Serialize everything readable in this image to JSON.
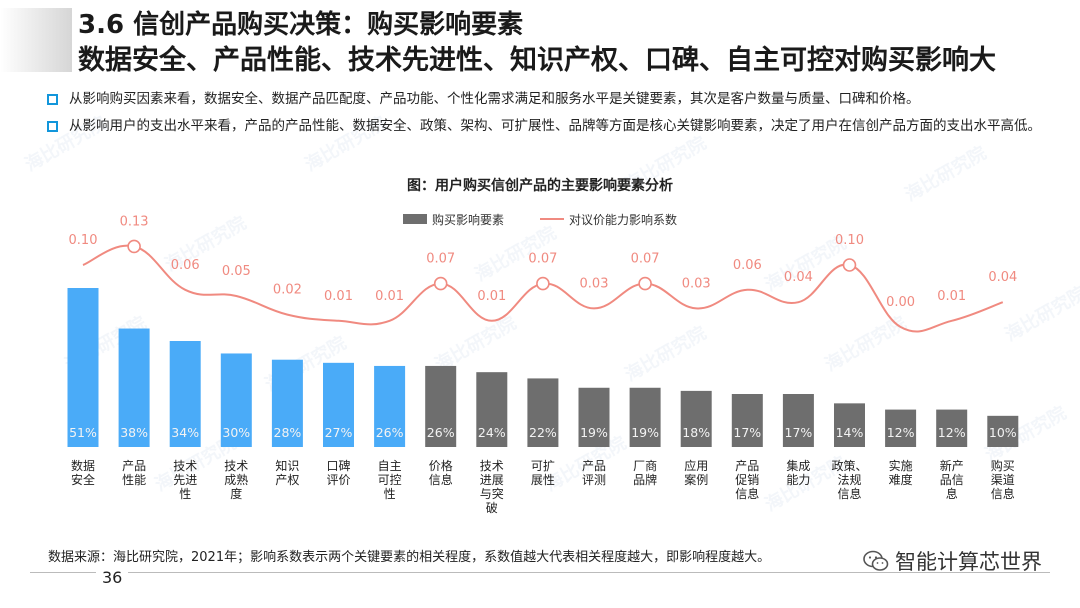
{
  "header": {
    "title_line1": "3.6 信创产品购买决策：购买影响要素",
    "title_line2": "数据安全、产品性能、技术先进性、知识产权、口碑、自主可控对购买影响大"
  },
  "bullets": [
    "从影响购买因素来看，数据安全、数据产品匹配度、产品功能、个性化需求满足和服务水平是关键要素，其次是客户数量与质量、口碑和价格。",
    "从影响用户的支出水平来看，产品的产品性能、数据安全、政策、架构、可扩展性、品牌等方面是核心关键影响要素，决定了用户在信创产品方面的支出水平高低。"
  ],
  "chart_data": {
    "type": "bar",
    "title": "图：用户购买信创产品的主要影响要素分析",
    "categories": [
      "数据\n安全",
      "产品\n性能",
      "技术\n先进\n性",
      "技术\n成熟\n度",
      "知识\n产权",
      "口碑\n评价",
      "自主\n可控\n性",
      "价格\n信息",
      "技术\n进展\n与突\n破",
      "可扩\n展性",
      "产品\n评测",
      "厂商\n品牌",
      "应用\n案例",
      "产品\n促销\n信息",
      "集成\n能力",
      "政策、\n法规\n信息",
      "实施\n难度",
      "新产\n品信\n息",
      "购买\n渠道\n信息"
    ],
    "series": [
      {
        "name": "购买影响要素",
        "values": [
          51,
          38,
          34,
          30,
          28,
          27,
          26,
          26,
          24,
          22,
          19,
          19,
          18,
          17,
          17,
          14,
          12,
          12,
          10
        ],
        "value_labels": [
          "51%",
          "38%",
          "34%",
          "30%",
          "28%",
          "27%",
          "26%",
          "26%",
          "24%",
          "22%",
          "19%",
          "19%",
          "18%",
          "17%",
          "17%",
          "14%",
          "12%",
          "12%",
          "10%"
        ],
        "highlight_count": 7
      },
      {
        "name": "对议价能力影响系数",
        "values": [
          0.1,
          0.13,
          0.06,
          0.05,
          0.02,
          0.01,
          0.01,
          0.07,
          0.01,
          0.07,
          0.03,
          0.07,
          0.03,
          0.06,
          0.04,
          0.1,
          0.0,
          0.01,
          0.04
        ],
        "value_labels": [
          "0.10",
          "0.13",
          "0.06",
          "0.05",
          "0.02",
          "0.01",
          "0.01",
          "0.07",
          "0.01",
          "0.07",
          "0.03",
          "0.07",
          "0.03",
          "0.06",
          "0.04",
          "0.10",
          "0.00",
          "0.01",
          "0.04"
        ],
        "circled_indices": [
          1,
          7,
          9,
          11,
          15
        ]
      }
    ],
    "legend": [
      "购买影响要素",
      "对议价能力影响系数"
    ],
    "legend_position": "top-right",
    "ylim_bars": [
      0,
      60
    ],
    "ylim_line": [
      0,
      0.2
    ],
    "colors": {
      "highlight": "#4aabf8",
      "normal": "#6e6e6e",
      "line": "#f08a80",
      "label_light": "#f3f3f3"
    }
  },
  "footer": {
    "source": "数据来源：海比研究院，2021年；影响系数表示两个关键要素的相关程度，系数值越大代表相关程度越大，即影响程度越大。",
    "page_number": "36",
    "brand": "智能计算芯世界",
    "watermark": "海比研究院"
  }
}
